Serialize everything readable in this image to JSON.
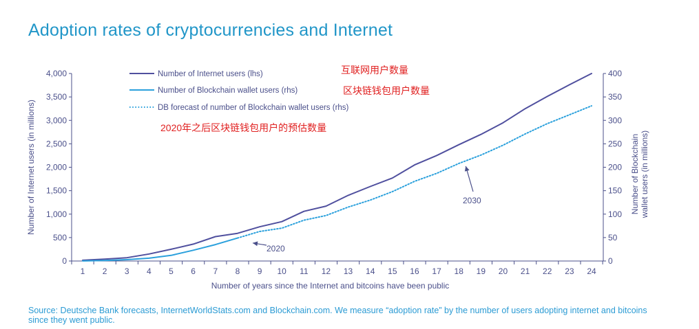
{
  "title": "Adoption rates of cryptocurrencies and Internet",
  "source": "Source: Deutsche Bank forecasts, InternetWorldStats.com and Blockchain.com. We measure “adoption rate” by the number of users adopting internet and bitcoins since they went public.",
  "colors": {
    "internet": "#4f4f9e",
    "blockchain": "#2aa0dc",
    "axis": "#4a4f8a",
    "title": "#2196c8",
    "notes": "#e02020"
  },
  "notes": [
    "互联网用户数量",
    "区块链钱包用户数量",
    "2020年之后区块链钱包用户的预估数量"
  ],
  "chart_data": {
    "type": "line",
    "title": "Adoption rates of cryptocurrencies and Internet",
    "xlabel": "Number of years since the Internet and bitcoins have been public",
    "ylabel": "Number of Internet users (in millions)",
    "y2label_lines": [
      "Number of Blockchain",
      "wallet users (in millions)"
    ],
    "x": [
      1,
      2,
      3,
      4,
      5,
      6,
      7,
      8,
      9,
      10,
      11,
      12,
      13,
      14,
      15,
      16,
      17,
      18,
      19,
      20,
      21,
      22,
      23,
      24
    ],
    "xlim": [
      1,
      24
    ],
    "ylim": [
      0,
      4000
    ],
    "y2lim": [
      0,
      400
    ],
    "yticks": [
      0,
      500,
      1000,
      1500,
      2000,
      2500,
      3000,
      3500,
      4000
    ],
    "yticklabels": [
      "0",
      "500",
      "1,000",
      "1,500",
      "2,000",
      "2,500",
      "3,000",
      "3,500",
      "4,000"
    ],
    "y2ticks": [
      0,
      50,
      100,
      150,
      200,
      250,
      300,
      350,
      400
    ],
    "y2ticklabels": [
      "0",
      "50",
      "100",
      "150",
      "200",
      "250",
      "300",
      "350",
      "400"
    ],
    "legend_position": "top-left",
    "grid": false,
    "series": [
      {
        "name": "Number of Internet users (lhs)",
        "axis": "left",
        "style": "solid",
        "x": [
          1,
          2,
          3,
          4,
          5,
          6,
          7,
          8,
          9,
          10,
          11,
          12,
          13,
          14,
          15,
          16,
          17,
          18,
          19,
          20,
          21,
          22,
          23,
          24
        ],
        "values": [
          16,
          40,
          70,
          150,
          250,
          360,
          520,
          590,
          730,
          840,
          1060,
          1170,
          1400,
          1590,
          1770,
          2050,
          2250,
          2480,
          2700,
          2950,
          3250,
          3510,
          3760,
          4000
        ]
      },
      {
        "name": "Number of Blockchain wallet users (rhs)",
        "axis": "right",
        "style": "solid",
        "x": [
          1,
          2,
          3,
          4,
          5,
          6,
          7,
          8
        ],
        "values": [
          0.1,
          1,
          3,
          6,
          12,
          23,
          35,
          49
        ]
      },
      {
        "name": "DB forecast of number of Blockchain wallet users (rhs)",
        "axis": "right",
        "style": "dotted",
        "x": [
          8,
          9,
          10,
          11,
          12,
          13,
          14,
          15,
          16,
          17,
          18,
          19,
          20,
          21,
          22,
          23,
          24
        ],
        "values": [
          49,
          63,
          70,
          87,
          97,
          115,
          130,
          148,
          170,
          187,
          208,
          226,
          247,
          271,
          293,
          312,
          331
        ]
      }
    ],
    "annotations": [
      {
        "text": "2020",
        "points_to_x": 8.5
      },
      {
        "text": "2030",
        "points_to_x": 18.5
      }
    ]
  }
}
